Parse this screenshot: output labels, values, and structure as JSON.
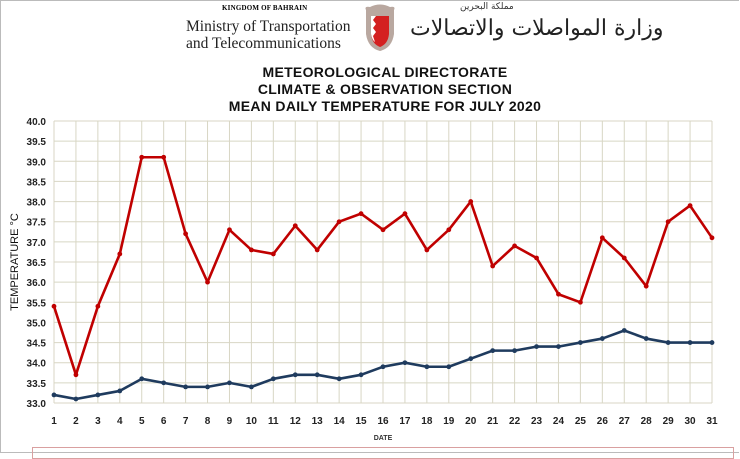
{
  "header": {
    "kingdom": "KINGDOM OF BAHRAIN",
    "ministry_line1": "Ministry of Transportation",
    "ministry_line2": "and Telecommunications",
    "arabic_kingdom": "مملكة البحرين",
    "arabic_ministry": "وزارة المواصلات والاتصالات"
  },
  "chart_data": {
    "type": "line",
    "title": [
      "METEOROLOGICAL DIRECTORATE",
      "CLIMATE & OBSERVATION SECTION",
      "MEAN DAILY TEMPERATURE  FOR JULY 2020"
    ],
    "xlabel": "DATE",
    "ylabel": "TEMPERATURE °C",
    "ylim": [
      33.0,
      40.0
    ],
    "yticks": [
      "33.0",
      "33.5",
      "34.0",
      "34.5",
      "35.0",
      "35.5",
      "36.0",
      "36.5",
      "37.0",
      "37.5",
      "38.0",
      "38.5",
      "39.0",
      "39.5",
      "40.0"
    ],
    "x": [
      1,
      2,
      3,
      4,
      5,
      6,
      7,
      8,
      9,
      10,
      11,
      12,
      13,
      14,
      15,
      16,
      17,
      18,
      19,
      20,
      21,
      22,
      23,
      24,
      25,
      26,
      27,
      28,
      29,
      30,
      31
    ],
    "grid": true,
    "series": [
      {
        "color": "#c00000",
        "values": [
          35.4,
          33.7,
          35.4,
          36.7,
          39.1,
          39.1,
          37.2,
          36.0,
          37.3,
          36.8,
          36.7,
          37.4,
          36.8,
          37.5,
          37.7,
          37.3,
          37.7,
          36.8,
          37.3,
          38.0,
          36.4,
          36.9,
          36.6,
          35.7,
          35.5,
          37.1,
          36.6,
          35.9,
          37.5,
          37.9,
          37.1
        ]
      },
      {
        "color": "#1f3b5e",
        "values": [
          33.2,
          33.1,
          33.2,
          33.3,
          33.6,
          33.5,
          33.4,
          33.4,
          33.5,
          33.4,
          33.6,
          33.7,
          33.7,
          33.6,
          33.7,
          33.9,
          34.0,
          33.9,
          33.9,
          34.1,
          34.3,
          34.3,
          34.4,
          34.4,
          34.5,
          34.6,
          34.8,
          34.6,
          34.5,
          34.5,
          34.5
        ]
      }
    ]
  }
}
